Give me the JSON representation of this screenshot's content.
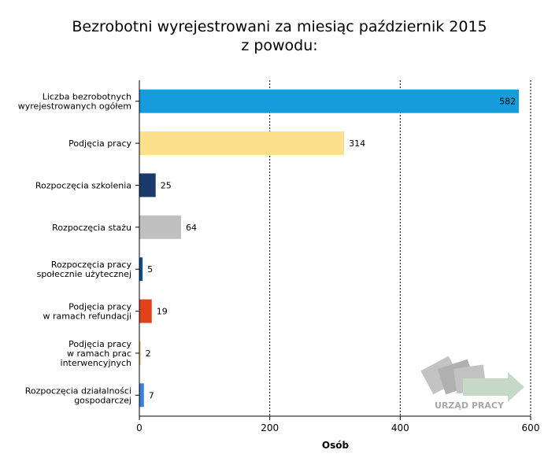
{
  "chart_data": {
    "type": "bar",
    "orientation": "horizontal",
    "title_lines": [
      "Bezrobotni wyrejestrowani za miesiąc październik 2015",
      "z powodu:"
    ],
    "xlabel": "Osób",
    "ylabel": "",
    "xlim": [
      0,
      600
    ],
    "xticks": [
      0,
      200,
      400,
      600
    ],
    "grid": "vertical-dotted",
    "categories": [
      [
        "Liczba bezrobotnych",
        "wyrejestrowanych ogółem"
      ],
      [
        "Podjęcia pracy"
      ],
      [
        "Rozpoczęcia szkolenia"
      ],
      [
        "Rozpoczęcia stażu"
      ],
      [
        "Rozpoczęcia pracy",
        "społecznie użytecznej"
      ],
      [
        "Podjęcia pracy",
        "w ramach refundacji"
      ],
      [
        "Podjęcia pracy",
        "w ramach prac",
        "interwencyjnych"
      ],
      [
        "Rozpoczęcia działalności",
        "gospodarczej"
      ]
    ],
    "values": [
      582,
      314,
      25,
      64,
      5,
      19,
      2,
      7
    ],
    "colors": [
      "#169bdc",
      "#fce08b",
      "#1a3a6b",
      "#c0c0c0",
      "#0d4f8b",
      "#e2421a",
      "#f0c97a",
      "#3c82d6"
    ],
    "value_label_inside": [
      true,
      false,
      false,
      false,
      false,
      false,
      false,
      false
    ]
  },
  "watermark": {
    "text": "URZĄD PRACY",
    "icon": "arrow-right-icon"
  }
}
